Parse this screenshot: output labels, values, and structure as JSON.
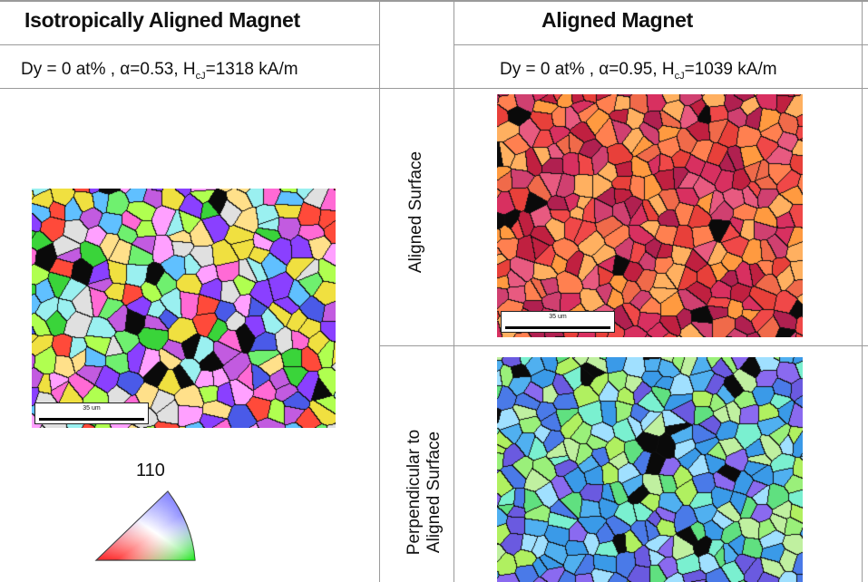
{
  "table": {
    "left_header": "Isotropically Aligned Magnet",
    "right_header": "Aligned Magnet",
    "left_condition": "Dy = 0 at% , α=0.53, H",
    "left_condition_sub": "cJ",
    "left_condition_tail": "=1318 kA/m",
    "right_condition": "Dy = 0 at% ,  α=0.95, H",
    "right_condition_sub": "cJ",
    "right_condition_tail": "=1039 kA/m",
    "row1_label": "Aligned Surface",
    "row2_label_line1": "Perpendicular to",
    "row2_label_line2": "Aligned Surface"
  },
  "micrographs": {
    "scale_bar_label": "35 um",
    "isotropic": {
      "palette": [
        "#3ad43a",
        "#f0e040",
        "#ff6ad5",
        "#4a5ae8",
        "#9af0f0",
        "#c25be0",
        "#ff4a3a",
        "#6ff06f",
        "#ffa0ff",
        "#60c0ff",
        "#ffe08a",
        "#8a40ff",
        "#e0e0e0",
        "#b0ff50"
      ]
    },
    "aligned_surface": {
      "palette": [
        "#e8403a",
        "#d83060",
        "#f06a4a",
        "#c02040",
        "#ff8050",
        "#e85a80",
        "#ffb060",
        "#b02050",
        "#f04848",
        "#d04070",
        "#ff9a40"
      ]
    },
    "perpendicular": {
      "palette": [
        "#4a7ae8",
        "#9af07a",
        "#7af0d0",
        "#6a5ae0",
        "#b0f060",
        "#50b0f0",
        "#8a6af0",
        "#c0f0a0",
        "#3a9ae8",
        "#a0e0ff",
        "#60e080"
      ]
    }
  },
  "legend": {
    "top_label": "110"
  }
}
